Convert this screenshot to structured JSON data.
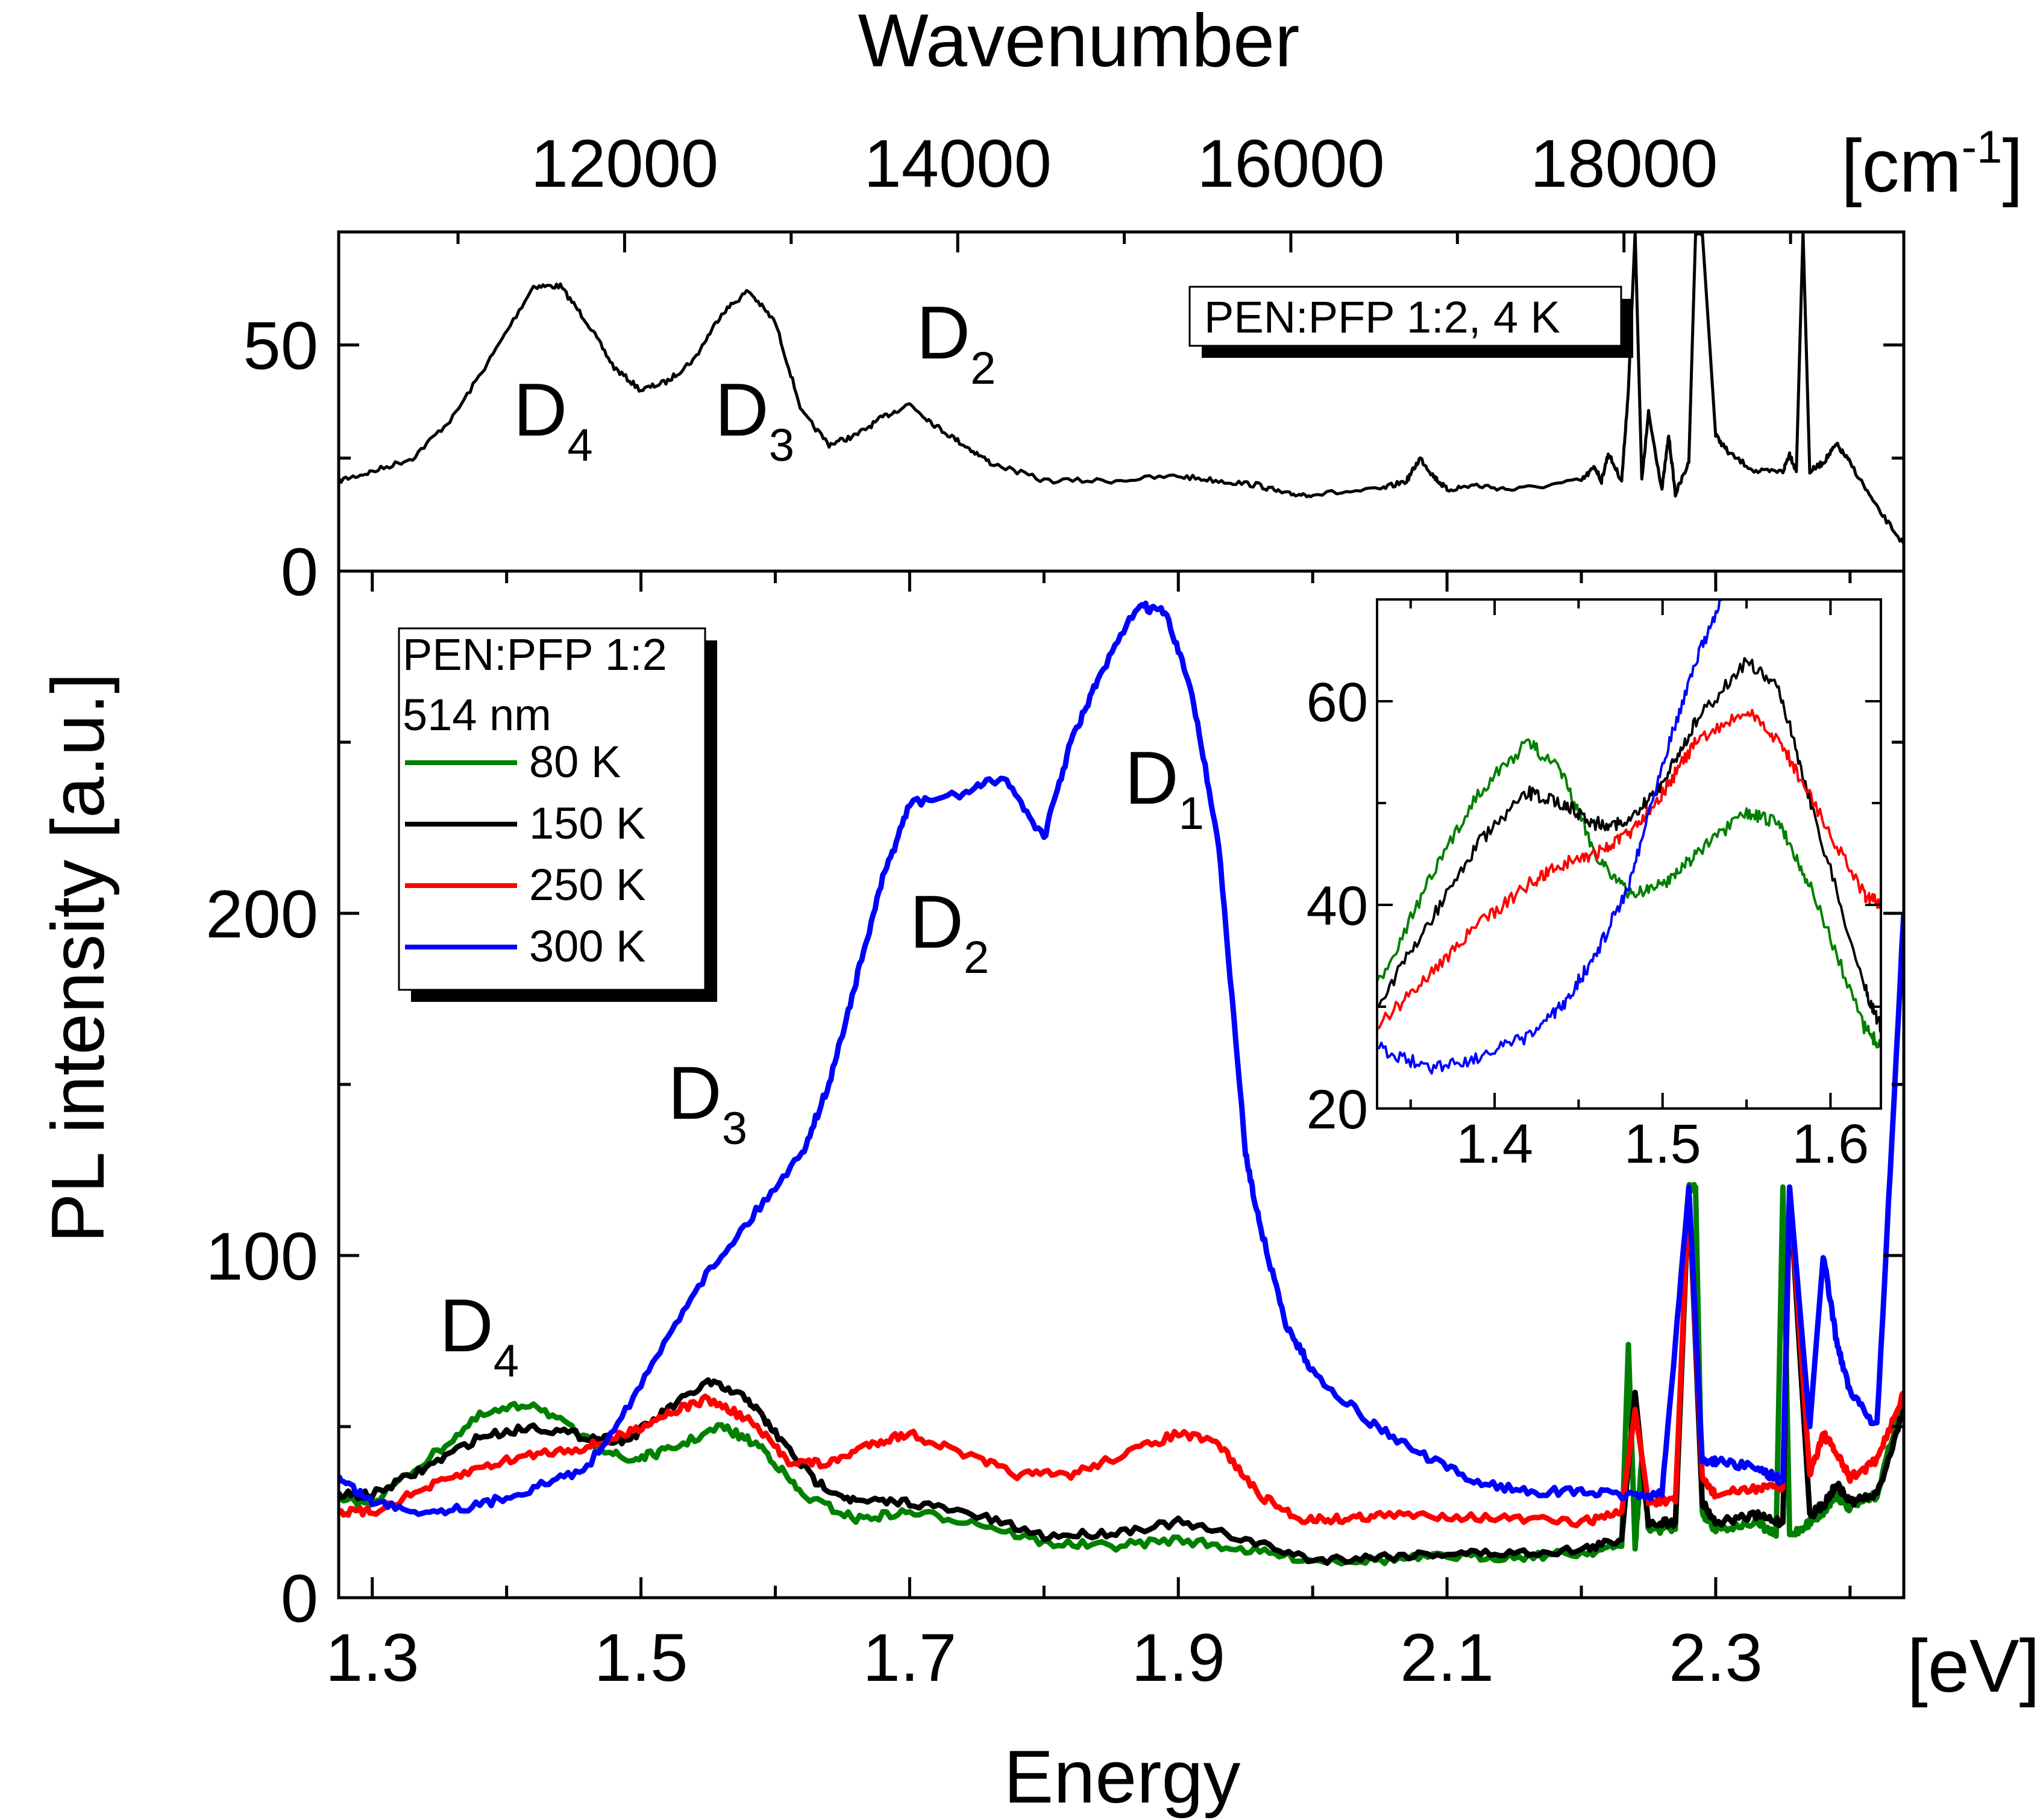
{
  "axes": {
    "top_title": "Wavenumber",
    "top_unit": "[cm",
    "top_unit_sup": "-1",
    "top_unit_close": "]",
    "bottom_title": "Energy",
    "bottom_unit": "[eV]",
    "y_title": "PL intensity [a.u.]"
  },
  "chart_data": [
    {
      "id": "top-panel",
      "type": "line",
      "legend_label": "PEN:PFP 1:2, 4 K",
      "legend_position": "top-right",
      "xlim": [
        1.275,
        2.44
      ],
      "ylim": [
        0,
        75
      ],
      "x_unit": "eV",
      "yticks": [
        0,
        50
      ],
      "top_axis_ticks": [
        12000,
        14000,
        16000,
        18000
      ],
      "peak_labels": [
        {
          "main": "D",
          "sub": "4",
          "x": 1.405,
          "y": 30
        },
        {
          "main": "D",
          "sub": "3",
          "x": 1.555,
          "y": 30
        },
        {
          "main": "D",
          "sub": "2",
          "x": 1.705,
          "y": 47
        }
      ],
      "series": [
        {
          "color": "#000000",
          "x": [
            1.275,
            1.3,
            1.33,
            1.36,
            1.39,
            1.42,
            1.44,
            1.46,
            1.48,
            1.5,
            1.52,
            1.54,
            1.56,
            1.58,
            1.6,
            1.62,
            1.64,
            1.66,
            1.68,
            1.7,
            1.72,
            1.74,
            1.76,
            1.8,
            1.85,
            1.9,
            1.93,
            1.96,
            1.98,
            2.0,
            2.05,
            2.07,
            2.08,
            2.09,
            2.1,
            2.12,
            2.15,
            2.2,
            2.21,
            2.215,
            2.22,
            2.23,
            2.235,
            2.24,
            2.245,
            2.25,
            2.26,
            2.265,
            2.27,
            2.28,
            2.285,
            2.29,
            2.3,
            2.31,
            2.33,
            2.35,
            2.355,
            2.36,
            2.365,
            2.37,
            2.38,
            2.39,
            2.4,
            2.42,
            2.44
          ],
          "y": [
            20,
            22,
            25,
            34,
            48,
            63,
            63,
            55,
            45,
            40,
            42,
            47,
            57,
            62,
            55,
            35,
            28,
            30,
            34,
            37,
            32,
            28,
            24,
            20,
            20,
            21,
            20,
            19,
            17,
            17,
            18,
            20,
            25,
            21,
            18,
            19,
            18,
            20,
            23,
            20,
            26,
            20,
            40,
            75,
            20,
            35,
            18,
            30,
            17,
            24,
            75,
            75,
            30,
            26,
            22,
            22,
            26,
            22,
            75,
            22,
            24,
            28,
            24,
            14,
            6
          ]
        }
      ]
    },
    {
      "id": "main-panel",
      "type": "line",
      "legend_title": [
        "PEN:PFP 1:2",
        "514 nm"
      ],
      "legend_position": "top-left",
      "xlim": [
        1.275,
        2.44
      ],
      "ylim": [
        0,
        300
      ],
      "xticks": [
        1.3,
        1.5,
        1.7,
        1.9,
        2.1,
        2.3
      ],
      "yticks": [
        0,
        100,
        200
      ],
      "peak_labels": [
        {
          "main": "D",
          "sub": "1",
          "x": 1.86,
          "y": 232
        },
        {
          "main": "D",
          "sub": "2",
          "x": 1.7,
          "y": 190
        },
        {
          "main": "D",
          "sub": "3",
          "x": 1.52,
          "y": 140
        },
        {
          "main": "D",
          "sub": "4",
          "x": 1.35,
          "y": 72
        }
      ],
      "series": [
        {
          "name": "80 K",
          "color": "#008000",
          "x": [
            1.275,
            1.3,
            1.34,
            1.38,
            1.42,
            1.46,
            1.49,
            1.52,
            1.56,
            1.59,
            1.62,
            1.66,
            1.7,
            1.75,
            1.8,
            1.85,
            1.9,
            1.95,
            2.0,
            2.05,
            2.1,
            2.15,
            2.2,
            2.23,
            2.235,
            2.24,
            2.245,
            2.25,
            2.27,
            2.28,
            2.285,
            2.29,
            2.3,
            2.33,
            2.345,
            2.35,
            2.355,
            2.37,
            2.38,
            2.39,
            2.4,
            2.42,
            2.44
          ],
          "y": [
            28,
            28,
            40,
            53,
            57,
            46,
            40,
            43,
            50,
            44,
            30,
            23,
            25,
            22,
            16,
            15,
            17,
            14,
            11,
            11,
            12,
            12,
            13,
            15,
            74,
            15,
            40,
            20,
            20,
            120,
            120,
            25,
            20,
            22,
            18,
            120,
            18,
            22,
            25,
            30,
            26,
            30,
            60
          ]
        },
        {
          "name": "150 K",
          "color": "#000000",
          "x": [
            1.275,
            1.3,
            1.34,
            1.38,
            1.42,
            1.46,
            1.49,
            1.52,
            1.55,
            1.58,
            1.6,
            1.63,
            1.66,
            1.7,
            1.75,
            1.8,
            1.85,
            1.9,
            1.95,
            2.0,
            2.05,
            2.1,
            2.15,
            2.2,
            2.23,
            2.24,
            2.25,
            2.27,
            2.28,
            2.29,
            2.3,
            2.33,
            2.35,
            2.355,
            2.37,
            2.38,
            2.39,
            2.4,
            2.42,
            2.44
          ],
          "y": [
            30,
            30,
            38,
            47,
            50,
            47,
            46,
            55,
            63,
            58,
            48,
            34,
            28,
            28,
            24,
            18,
            19,
            22,
            17,
            11,
            12,
            13,
            13,
            14,
            17,
            60,
            22,
            22,
            120,
            28,
            22,
            24,
            22,
            120,
            24,
            27,
            33,
            28,
            30,
            55
          ]
        },
        {
          "name": "250 K",
          "color": "#ff0000",
          "x": [
            1.275,
            1.3,
            1.34,
            1.38,
            1.42,
            1.46,
            1.49,
            1.52,
            1.55,
            1.58,
            1.61,
            1.64,
            1.67,
            1.7,
            1.74,
            1.78,
            1.82,
            1.86,
            1.9,
            1.93,
            1.96,
            1.99,
            2.02,
            2.05,
            2.1,
            2.15,
            2.2,
            2.23,
            2.24,
            2.25,
            2.27,
            2.28,
            2.29,
            2.3,
            2.33,
            2.35,
            2.355,
            2.37,
            2.38,
            2.39,
            2.4,
            2.42,
            2.44
          ],
          "y": [
            25,
            25,
            32,
            38,
            42,
            44,
            48,
            54,
            58,
            52,
            40,
            39,
            45,
            48,
            42,
            36,
            36,
            42,
            48,
            45,
            30,
            23,
            23,
            24,
            24,
            23,
            22,
            25,
            55,
            28,
            28,
            120,
            35,
            30,
            32,
            32,
            120,
            36,
            48,
            42,
            35,
            40,
            60
          ]
        },
        {
          "name": "300 K",
          "color": "#0000ff",
          "x": [
            1.275,
            1.3,
            1.34,
            1.38,
            1.42,
            1.46,
            1.5,
            1.54,
            1.58,
            1.62,
            1.64,
            1.66,
            1.68,
            1.7,
            1.74,
            1.77,
            1.8,
            1.82,
            1.84,
            1.87,
            1.89,
            1.91,
            1.93,
            1.95,
            1.96,
            1.98,
            2.0,
            2.04,
            2.08,
            2.12,
            2.16,
            2.2,
            2.23,
            2.26,
            2.28,
            2.29,
            2.3,
            2.33,
            2.35,
            2.355,
            2.37,
            2.38,
            2.39,
            2.4,
            2.42,
            2.44
          ],
          "y": [
            35,
            28,
            25,
            27,
            32,
            38,
            62,
            90,
            110,
            130,
            150,
            180,
            210,
            232,
            235,
            240,
            222,
            250,
            268,
            290,
            288,
            265,
            220,
            130,
            110,
            80,
            66,
            52,
            42,
            34,
            31,
            31,
            30,
            30,
            120,
            40,
            40,
            38,
            34,
            120,
            50,
            100,
            75,
            60,
            50,
            200
          ]
        }
      ]
    },
    {
      "id": "inset",
      "type": "line",
      "xlim": [
        1.33,
        1.63
      ],
      "ylim": [
        20,
        70
      ],
      "xticks": [
        1.4,
        1.5,
        1.6
      ],
      "yticks": [
        20,
        40,
        60
      ],
      "series": [
        {
          "name": "80 K",
          "color": "#008000",
          "x": [
            1.33,
            1.36,
            1.39,
            1.42,
            1.44,
            1.46,
            1.48,
            1.5,
            1.52,
            1.55,
            1.57,
            1.59,
            1.62,
            1.63
          ],
          "y": [
            32,
            42,
            51,
            56,
            53,
            45,
            41,
            42,
            45,
            49,
            48,
            41,
            28,
            26
          ]
        },
        {
          "name": "150 K",
          "color": "#000000",
          "x": [
            1.33,
            1.36,
            1.39,
            1.42,
            1.44,
            1.46,
            1.48,
            1.5,
            1.52,
            1.55,
            1.57,
            1.59,
            1.62,
            1.63
          ],
          "y": [
            30,
            38,
            46,
            51,
            50,
            48,
            48,
            52,
            58,
            64,
            61,
            49,
            32,
            28
          ]
        },
        {
          "name": "250 K",
          "color": "#ff0000",
          "x": [
            1.33,
            1.36,
            1.39,
            1.42,
            1.44,
            1.46,
            1.48,
            1.5,
            1.52,
            1.55,
            1.57,
            1.59,
            1.62,
            1.63
          ],
          "y": [
            28,
            33,
            38,
            42,
            44,
            45,
            47,
            51,
            56,
            59,
            56,
            50,
            41,
            40
          ]
        },
        {
          "name": "300 K",
          "color": "#0000ff",
          "x": [
            1.33,
            1.36,
            1.39,
            1.42,
            1.44,
            1.46,
            1.48,
            1.5,
            1.52,
            1.54,
            1.55
          ],
          "y": [
            26,
            24,
            25,
            27,
            30,
            35,
            42,
            54,
            64,
            72,
            78
          ]
        }
      ]
    }
  ]
}
